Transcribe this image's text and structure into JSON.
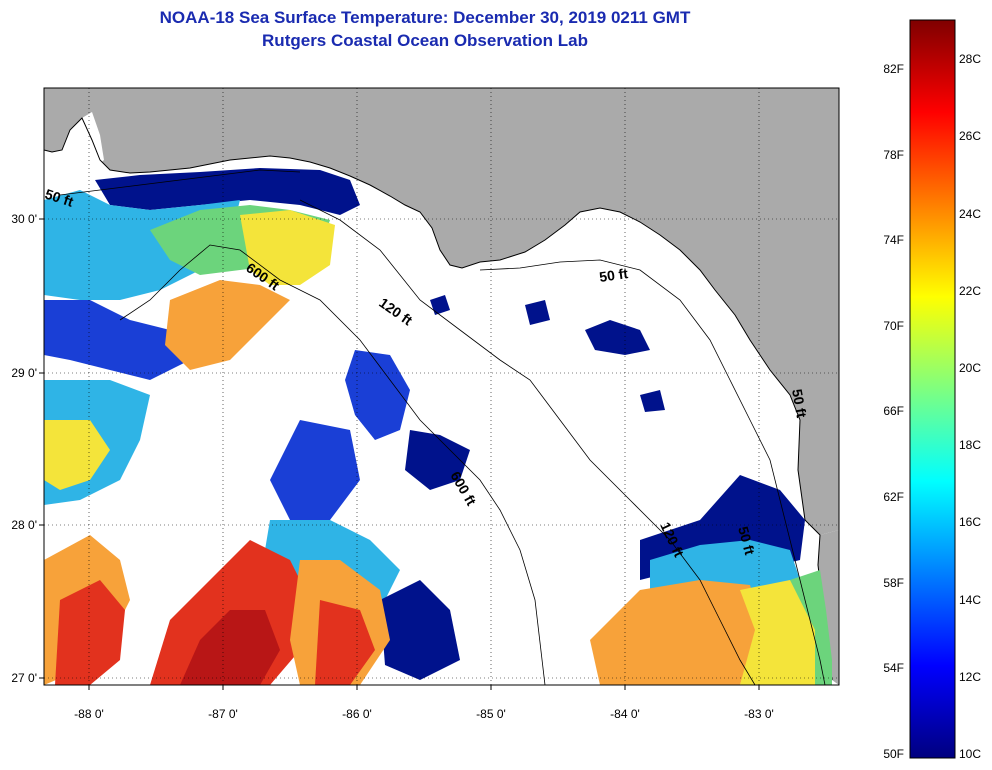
{
  "title": {
    "line1": "NOAA-18 Sea Surface Temperature:  December 30, 2019 0211 GMT",
    "line2": "Rutgers Coastal Ocean Observation Lab"
  },
  "map": {
    "lon_ticks": [
      "-88 0'",
      "-87 0'",
      "-86 0'",
      "-85 0'",
      "-84 0'",
      "-83 0'"
    ],
    "lat_ticks": [
      "30 0'",
      "29 0'",
      "28 0'",
      "27 0'"
    ],
    "contour_labels": {
      "c50_west": "50 ft",
      "c50_east": "50 ft",
      "c600_north": "600 ft",
      "c120_north": "120 ft",
      "c600_south": "600 ft",
      "c120_south": "120 ft",
      "c50_south": "50 ft",
      "c50_southeast": "50 ft"
    },
    "colors": {
      "land": "#aaaaaa",
      "cloud": "#ffffff",
      "dark_blue": "#00128c",
      "blue": "#1a3fd6",
      "cyan": "#2fb4e6",
      "green": "#6cd47c",
      "yellow": "#f4e43a",
      "orange": "#f7a23a",
      "red": "#e2321e",
      "dark_red": "#b81616"
    }
  },
  "colorbar": {
    "fahrenheit_labels": [
      "82F",
      "78F",
      "74F",
      "70F",
      "66F",
      "62F",
      "58F",
      "54F",
      "50F"
    ],
    "celsius_labels": [
      "28C",
      "26C",
      "24C",
      "22C",
      "20C",
      "18C",
      "16C",
      "14C",
      "12C",
      "10C"
    ],
    "gradient_stops": [
      "#00007f",
      "#0000ff",
      "#007fff",
      "#00ffff",
      "#7fff7f",
      "#ffff00",
      "#ff7f00",
      "#ff0000",
      "#7f0000"
    ]
  }
}
